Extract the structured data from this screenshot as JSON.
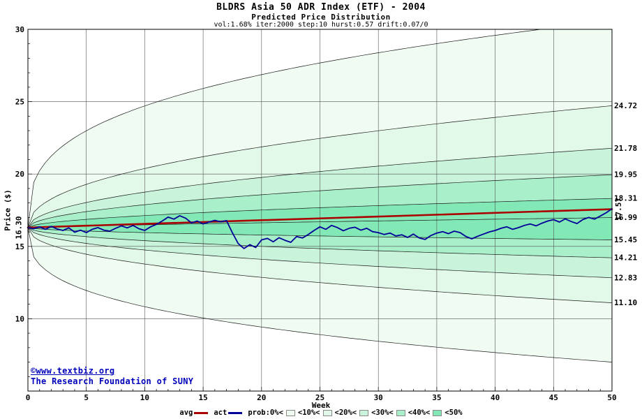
{
  "header": {
    "title": "BLDRS Asia 50 ADR Index (ETF) - 2004",
    "subtitle": "Predicted Price Distribution",
    "params": "vol:1.68% iter:2000 step:10 hurst:0.57 drift:0.07/0"
  },
  "axes": {
    "y_label": "Price ($)",
    "x_label": "Week",
    "x_ticks": [
      0,
      5,
      10,
      15,
      20,
      25,
      30,
      35,
      40,
      45,
      50
    ],
    "y_ticks": [
      30,
      25,
      20,
      15,
      10
    ]
  },
  "annotations": {
    "start_label": "16.30",
    "avg_end_label": "17.57",
    "copyright_line1": "©www.textbiz.org",
    "copyright_line2": "The Research Foundation of SUNY"
  },
  "legend": {
    "avg_label": "avg",
    "act_label": "act",
    "prob_label": "prob:0%<",
    "band_labels": [
      "<10%<",
      "<20%<",
      "<30%<",
      "<40%<",
      "<50%"
    ]
  },
  "colors": {
    "avg": "#aa0000",
    "avg_label": "#cc0000",
    "act": "#000099",
    "copyright": "#0000bb",
    "grid": "#555555",
    "boundary": "#1a1a1a",
    "bands": [
      "#f0fbf2",
      "#e2f8e9",
      "#c9f4db",
      "#a9efca",
      "#82e9b6"
    ]
  },
  "chart_data": {
    "type": "line",
    "title": "BLDRS Asia 50 ADR Index (ETF) - 2004",
    "subtitle": "Predicted Price Distribution",
    "xlabel": "Week",
    "ylabel": "Price ($)",
    "x_range": [
      0,
      50
    ],
    "y_range": [
      5,
      30
    ],
    "grid": true,
    "start_price": 16.3,
    "avg_line": {
      "start": 16.3,
      "end": 17.57
    },
    "fan_boundaries": [
      {
        "end": 30.6,
        "label": ""
      },
      {
        "end": 24.72,
        "label": "24.72"
      },
      {
        "end": 21.78,
        "label": "21.78"
      },
      {
        "end": 19.95,
        "label": "19.95"
      },
      {
        "end": 18.31,
        "label": "18.31"
      },
      {
        "end": 16.99,
        "label": "16.99"
      },
      {
        "end": 15.45,
        "label": "15.45"
      },
      {
        "end": 14.21,
        "label": "14.21"
      },
      {
        "end": 12.83,
        "label": "12.83"
      },
      {
        "end": 11.1,
        "label": "11.10"
      },
      {
        "end": 7.0,
        "label": ""
      }
    ],
    "actual": {
      "x_step": 0.5,
      "values": [
        16.3,
        16.22,
        16.35,
        16.18,
        16.38,
        16.2,
        16.1,
        16.28,
        15.98,
        16.12,
        15.95,
        16.18,
        16.3,
        16.12,
        16.05,
        16.25,
        16.42,
        16.28,
        16.45,
        16.22,
        16.1,
        16.35,
        16.52,
        16.75,
        17.02,
        16.88,
        17.12,
        16.95,
        16.62,
        16.75,
        16.55,
        16.68,
        16.8,
        16.7,
        16.78,
        15.95,
        15.2,
        14.85,
        15.12,
        14.92,
        15.45,
        15.55,
        15.32,
        15.6,
        15.42,
        15.28,
        15.68,
        15.58,
        15.82,
        16.1,
        16.35,
        16.18,
        16.45,
        16.3,
        16.08,
        16.25,
        16.32,
        16.12,
        16.25,
        16.02,
        15.95,
        15.82,
        15.92,
        15.72,
        15.8,
        15.62,
        15.85,
        15.58,
        15.48,
        15.75,
        15.92,
        16.02,
        15.88,
        16.05,
        15.95,
        15.68,
        15.52,
        15.7,
        15.85,
        16.0,
        16.1,
        16.25,
        16.35,
        16.18,
        16.3,
        16.45,
        16.55,
        16.42,
        16.6,
        16.75,
        16.85,
        16.68,
        16.9,
        16.72,
        16.58,
        16.85,
        17.0,
        16.88,
        17.1,
        17.32,
        17.6
      ]
    }
  }
}
